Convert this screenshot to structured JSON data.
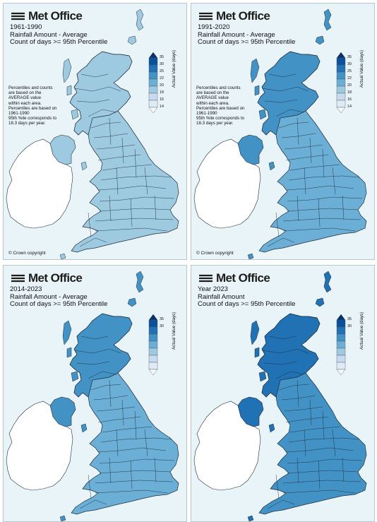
{
  "brand": "Met Office",
  "copyright": "© Crown copyright",
  "legend": {
    "title": "Actual Value (days)",
    "ticks": [
      "35",
      "30",
      "25",
      "22",
      "20",
      "18",
      "16",
      "14"
    ],
    "colors": [
      "#08306b",
      "#08519c",
      "#2171b5",
      "#4292c6",
      "#6baed6",
      "#9ecae1",
      "#c6dbef",
      "#deebf7",
      "#f7fbff"
    ]
  },
  "colors": {
    "sea": "#e9f4f8",
    "ireland": "#ffffff",
    "border": "#1f2d3a"
  },
  "panels": [
    {
      "title": "1961-1990",
      "line2": "Rainfall Amount - Average",
      "line3": "Count of days >= 95th Percentile",
      "note": [
        "Percentiles and counts",
        "are based on the",
        "AVERAGE value",
        "within each area.",
        "Percentiles are based on",
        "1961-1990",
        "95th %ile corresponds to",
        "18.3 days per year."
      ],
      "fill": "#9ecae1",
      "scotland_fill": "#9ecae1",
      "ni_fill": "#9ecae1"
    },
    {
      "title": "1991-2020",
      "line2": "Rainfall Amount - Average",
      "line3": "Count of days >= 95th Percentile",
      "note": [
        "Percentiles and counts",
        "are based on the",
        "AVERAGE value",
        "within each area.",
        "Percentiles are based on",
        "1961-1990",
        "95th %ile corresponds to",
        "18.3 days per year."
      ],
      "fill": "#6baed6",
      "scotland_fill": "#4292c6",
      "ni_fill": "#4292c6"
    },
    {
      "title": "2014-2023",
      "line2": "Rainfall Amount - Average",
      "line3": "Count of days >= 95th Percentile",
      "note": [],
      "fill": "#6baed6",
      "scotland_fill": "#4292c6",
      "ni_fill": "#4292c6"
    },
    {
      "title": "Year 2023",
      "line2": "Rainfall Amount",
      "line3": "Count of days >= 95th Percentile",
      "note": [],
      "fill": "#4292c6",
      "scotland_fill": "#2171b5",
      "ni_fill": "#2171b5"
    }
  ]
}
